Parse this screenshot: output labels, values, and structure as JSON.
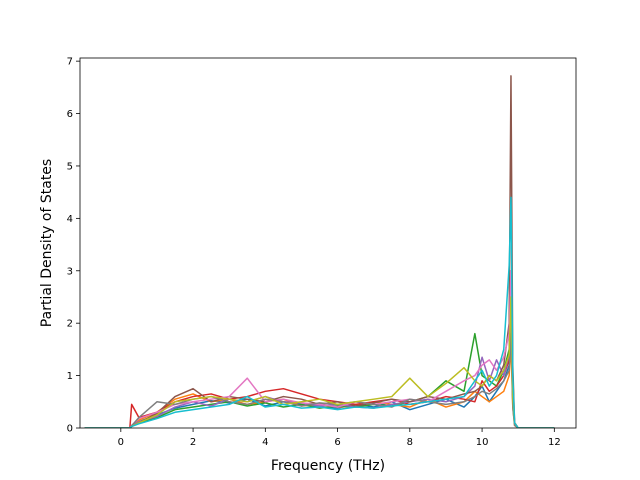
{
  "chart_data": {
    "type": "line",
    "title": "",
    "xlabel": "Frequency (THz)",
    "ylabel": "Partial Density of States",
    "xlim": [
      -1.13,
      12.6
    ],
    "ylim": [
      0,
      7.06
    ],
    "xticks": [
      0,
      2,
      4,
      6,
      8,
      10,
      12
    ],
    "yticks": [
      0,
      1,
      2,
      3,
      4,
      5,
      6,
      7
    ],
    "grid": false,
    "legend": "none",
    "series_count": 10,
    "colors": [
      "#1f77b4",
      "#ff7f0e",
      "#2ca02c",
      "#d62728",
      "#9467bd",
      "#8c564b",
      "#e377c2",
      "#7f7f7f",
      "#bcbd22",
      "#17becf"
    ],
    "x": [
      -1.0,
      0.0,
      0.25,
      0.3,
      0.5,
      1.0,
      1.5,
      2.0,
      2.5,
      3.0,
      3.5,
      4.0,
      4.5,
      5.0,
      5.5,
      6.0,
      6.5,
      7.0,
      7.5,
      8.0,
      8.5,
      9.0,
      9.5,
      9.8,
      10.0,
      10.2,
      10.4,
      10.6,
      10.75,
      10.8,
      10.85,
      10.9,
      11.0,
      12.0
    ],
    "series": [
      {
        "values": [
          0,
          0,
          0,
          0.05,
          0.12,
          0.25,
          0.38,
          0.45,
          0.52,
          0.48,
          0.55,
          0.42,
          0.5,
          0.45,
          0.4,
          0.38,
          0.45,
          0.4,
          0.5,
          0.35,
          0.45,
          0.55,
          0.4,
          0.6,
          0.8,
          0.5,
          0.7,
          0.9,
          1.2,
          2.0,
          0.5,
          0.1,
          0,
          0
        ]
      },
      {
        "values": [
          0,
          0,
          0,
          0.04,
          0.15,
          0.3,
          0.55,
          0.65,
          0.5,
          0.55,
          0.45,
          0.5,
          0.55,
          0.42,
          0.45,
          0.4,
          0.42,
          0.5,
          0.45,
          0.4,
          0.55,
          0.4,
          0.5,
          0.7,
          0.6,
          0.5,
          0.6,
          0.7,
          1.0,
          1.6,
          0.4,
          0.05,
          0,
          0
        ]
      },
      {
        "values": [
          0,
          0,
          0,
          0.03,
          0.1,
          0.2,
          0.35,
          0.4,
          0.45,
          0.5,
          0.42,
          0.48,
          0.4,
          0.45,
          0.38,
          0.42,
          0.4,
          0.45,
          0.42,
          0.5,
          0.6,
          0.9,
          0.7,
          1.8,
          1.0,
          0.9,
          0.8,
          1.1,
          1.5,
          2.4,
          0.6,
          0.1,
          0,
          0
        ]
      },
      {
        "values": [
          0,
          0,
          0,
          0.45,
          0.2,
          0.3,
          0.5,
          0.6,
          0.65,
          0.55,
          0.6,
          0.7,
          0.75,
          0.65,
          0.55,
          0.5,
          0.45,
          0.5,
          0.55,
          0.45,
          0.5,
          0.6,
          0.55,
          0.5,
          0.9,
          0.7,
          0.8,
          1.0,
          1.3,
          2.8,
          0.7,
          0.1,
          0,
          0
        ]
      },
      {
        "values": [
          0,
          0,
          0,
          0.04,
          0.12,
          0.22,
          0.4,
          0.5,
          0.42,
          0.55,
          0.5,
          0.6,
          0.5,
          0.48,
          0.42,
          0.45,
          0.4,
          0.38,
          0.45,
          0.5,
          0.55,
          0.5,
          0.6,
          0.8,
          1.35,
          0.9,
          1.3,
          1.0,
          1.4,
          2.2,
          0.5,
          0.1,
          0,
          0
        ]
      },
      {
        "values": [
          0,
          0,
          0,
          0.03,
          0.1,
          0.28,
          0.6,
          0.75,
          0.5,
          0.6,
          0.55,
          0.5,
          0.6,
          0.55,
          0.45,
          0.5,
          0.42,
          0.48,
          0.55,
          0.5,
          0.6,
          0.55,
          0.65,
          0.7,
          0.8,
          1.0,
          0.9,
          1.2,
          2.0,
          6.72,
          1.2,
          0.1,
          0,
          0
        ]
      },
      {
        "values": [
          0,
          0,
          0,
          0.05,
          0.18,
          0.3,
          0.45,
          0.5,
          0.55,
          0.6,
          0.95,
          0.5,
          0.55,
          0.48,
          0.45,
          0.4,
          0.5,
          0.45,
          0.5,
          0.55,
          0.5,
          0.7,
          0.9,
          1.0,
          1.2,
          1.3,
          1.1,
          1.35,
          1.8,
          3.0,
          0.8,
          0.1,
          0,
          0
        ]
      },
      {
        "values": [
          0,
          0,
          0,
          0.04,
          0.2,
          0.5,
          0.45,
          0.55,
          0.6,
          0.5,
          0.45,
          0.55,
          0.5,
          0.42,
          0.48,
          0.45,
          0.5,
          0.45,
          0.4,
          0.55,
          0.5,
          0.45,
          0.5,
          0.6,
          0.7,
          0.65,
          0.75,
          0.9,
          1.1,
          1.8,
          0.4,
          0.05,
          0,
          0
        ]
      },
      {
        "values": [
          0,
          0,
          0,
          0.03,
          0.1,
          0.25,
          0.5,
          0.55,
          0.6,
          0.55,
          0.5,
          0.6,
          0.45,
          0.5,
          0.55,
          0.45,
          0.5,
          0.55,
          0.6,
          0.95,
          0.6,
          0.85,
          1.15,
          0.9,
          0.8,
          1.0,
          0.9,
          1.1,
          1.4,
          2.5,
          0.6,
          0.1,
          0,
          0
        ]
      },
      {
        "values": [
          0,
          0,
          0,
          0.03,
          0.08,
          0.18,
          0.3,
          0.35,
          0.4,
          0.45,
          0.6,
          0.4,
          0.45,
          0.38,
          0.4,
          0.35,
          0.4,
          0.38,
          0.42,
          0.45,
          0.5,
          0.55,
          0.6,
          0.9,
          1.1,
          0.8,
          1.0,
          1.5,
          3.1,
          4.4,
          1.0,
          0.1,
          0,
          0
        ]
      }
    ]
  }
}
